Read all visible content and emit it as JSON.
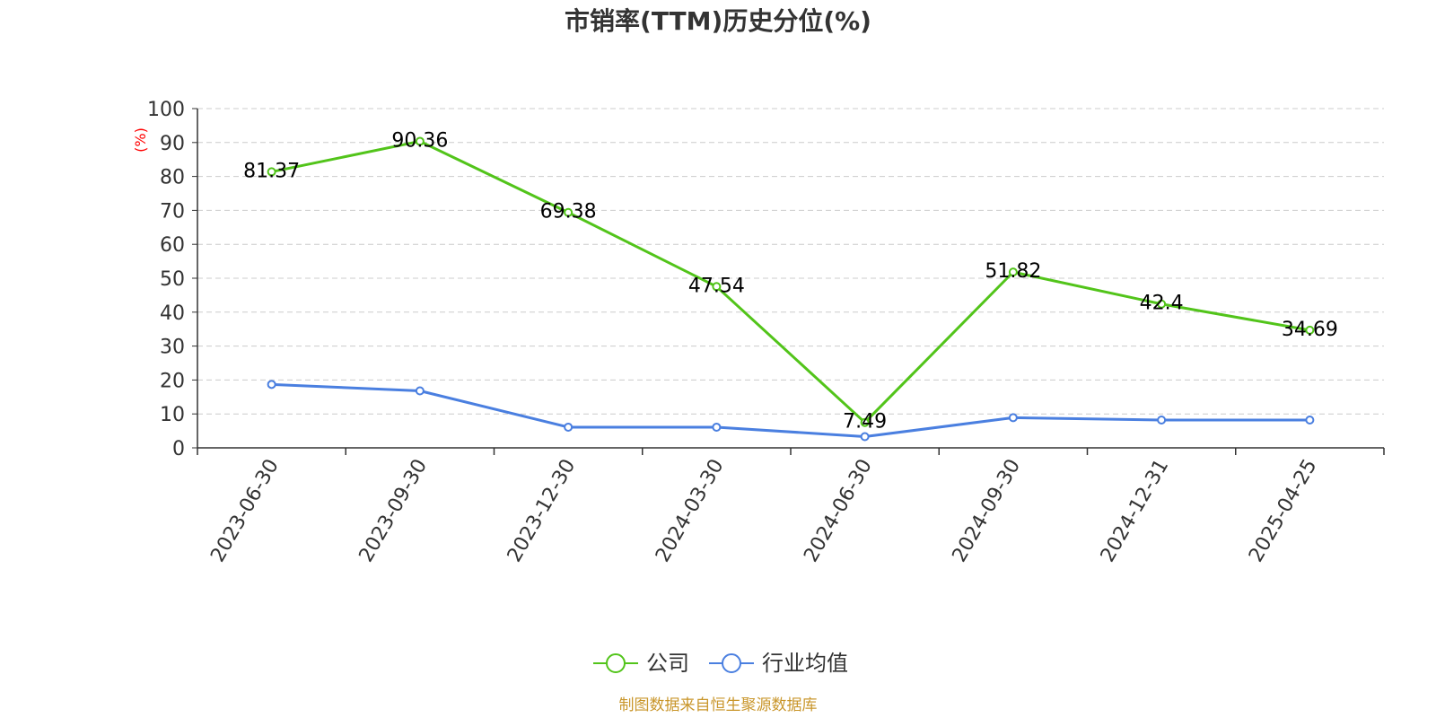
{
  "chart_data": {
    "type": "line",
    "title": "市销率(TTM)历史分位(%)",
    "ylabel": "(%)",
    "xlabel": "",
    "ylim": [
      0,
      100
    ],
    "yticks": [
      0,
      10,
      20,
      30,
      40,
      50,
      60,
      70,
      80,
      90,
      100
    ],
    "grid": true,
    "legend_position": "bottom",
    "categories": [
      "2023-06-30",
      "2023-09-30",
      "2023-12-30",
      "2024-03-30",
      "2024-06-30",
      "2024-09-30",
      "2024-12-31",
      "2025-04-25"
    ],
    "series": [
      {
        "name": "公司",
        "color": "#52c41a",
        "show_labels": true,
        "values": [
          81.37,
          90.36,
          69.38,
          47.54,
          7.49,
          51.82,
          42.4,
          34.69
        ],
        "labels": [
          "81.37",
          "90.36",
          "69.38",
          "47.54",
          "7.49",
          "51.82",
          "42.4",
          "34.69"
        ]
      },
      {
        "name": "行业均值",
        "color": "#4a7fe0",
        "show_labels": false,
        "values": [
          18.7,
          16.8,
          6.1,
          6.1,
          3.3,
          8.9,
          8.2,
          8.2
        ]
      }
    ],
    "source": "制图数据来自恒生聚源数据库"
  }
}
